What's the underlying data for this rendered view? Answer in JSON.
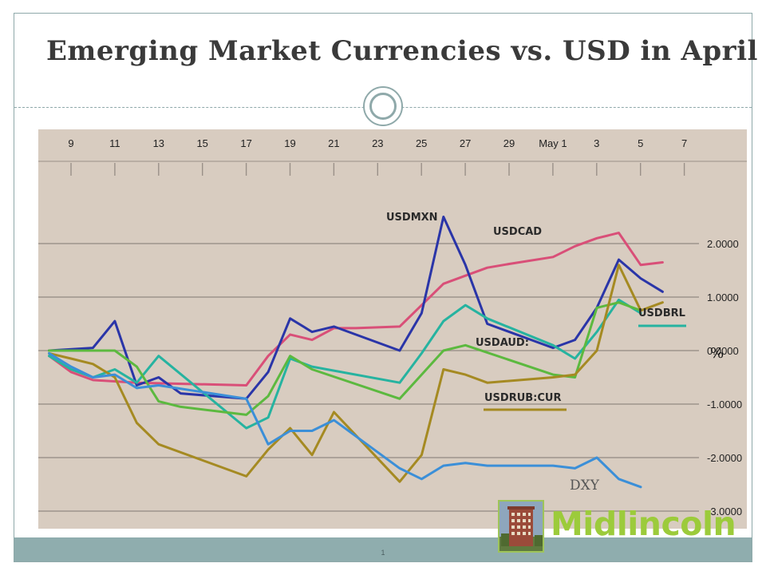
{
  "title": "Emerging Market Currencies vs. USD in April",
  "page_number": "1",
  "logo": {
    "text": "Midlincoln",
    "icon": "building-photo-icon",
    "color": "#9ccb3b"
  },
  "colors": {
    "accent": "#8fadae",
    "plot_bg": "#d8ccc0"
  },
  "chart_data": {
    "type": "line",
    "title": "Emerging Market Currencies vs. USD in April",
    "x_ticks": [
      "9",
      "11",
      "13",
      "15",
      "17",
      "19",
      "21",
      "23",
      "25",
      "27",
      "29",
      "May 1",
      "3",
      "5",
      "7"
    ],
    "y_ticks": [
      {
        "value": 2,
        "label": "2.0000"
      },
      {
        "value": 1,
        "label": "1.0000"
      },
      {
        "value": 0,
        "label": "0.0000"
      },
      {
        "value": -1,
        "label": "-1.0000"
      },
      {
        "value": -2,
        "label": "-2.0000"
      },
      {
        "value": -3,
        "label": "-3.0000"
      }
    ],
    "ylim": [
      -3.3,
      2.5
    ],
    "y_unit": "%",
    "grid": true,
    "series": [
      {
        "name": "USDCAD",
        "color": "#d94f78",
        "x": [
          8,
          9,
          10,
          12,
          17,
          18,
          19,
          20,
          21,
          22,
          24,
          25,
          26,
          27,
          28,
          29,
          31,
          32,
          33,
          34,
          35,
          36
        ],
        "y": [
          -0.1,
          -0.4,
          -0.55,
          -0.6,
          -0.65,
          -0.1,
          0.3,
          0.2,
          0.42,
          0.42,
          0.45,
          0.85,
          1.25,
          1.4,
          1.55,
          1.62,
          1.75,
          1.95,
          2.1,
          2.2,
          1.6,
          1.65
        ]
      },
      {
        "name": "USDMXN",
        "color": "#2a35a8",
        "x": [
          8,
          10,
          11,
          12,
          13,
          14,
          17,
          18,
          19,
          20,
          21,
          24,
          25,
          26,
          27,
          28,
          31,
          32,
          33,
          34,
          35,
          36
        ],
        "y": [
          0.0,
          0.05,
          0.55,
          -0.65,
          -0.5,
          -0.8,
          -0.9,
          -0.4,
          0.6,
          0.35,
          0.45,
          0.0,
          0.7,
          2.5,
          1.6,
          0.5,
          0.05,
          0.2,
          0.8,
          1.7,
          1.35,
          1.1
        ]
      },
      {
        "name": "USDBRL",
        "color": "#26b3a0",
        "x": [
          8,
          9,
          10,
          11,
          12,
          13,
          17,
          18,
          19,
          20,
          24,
          25,
          26,
          27,
          28,
          31,
          32,
          33,
          34,
          35
        ],
        "y": [
          -0.1,
          -0.35,
          -0.5,
          -0.35,
          -0.6,
          -0.1,
          -1.45,
          -1.25,
          -0.15,
          -0.3,
          -0.6,
          -0.05,
          0.55,
          0.85,
          0.6,
          0.1,
          -0.15,
          0.35,
          0.95,
          0.7
        ]
      },
      {
        "name": "USDAUD:",
        "color": "#5cb93f",
        "x": [
          8,
          9,
          10,
          11,
          12,
          13,
          14,
          17,
          18,
          19,
          20,
          24,
          25,
          26,
          27,
          31,
          32,
          33,
          34,
          35
        ],
        "y": [
          0.0,
          0.0,
          0.0,
          0.0,
          -0.3,
          -0.95,
          -1.05,
          -1.2,
          -0.85,
          -0.1,
          -0.35,
          -0.9,
          -0.45,
          0.0,
          0.1,
          -0.45,
          -0.5,
          0.8,
          0.9,
          0.75
        ]
      },
      {
        "name": "USDRUB:CUR",
        "color": "#a58a22",
        "x": [
          8,
          9,
          10,
          11,
          12,
          13,
          17,
          18,
          19,
          20,
          21,
          24,
          25,
          26,
          27,
          28,
          31,
          32,
          33,
          34,
          35,
          36
        ],
        "y": [
          -0.05,
          -0.15,
          -0.25,
          -0.5,
          -1.35,
          -1.75,
          -2.35,
          -1.85,
          -1.45,
          -1.95,
          -1.15,
          -2.45,
          -1.95,
          -0.35,
          -0.45,
          -0.6,
          -0.5,
          -0.45,
          0.0,
          1.6,
          0.75,
          0.9
        ]
      },
      {
        "name": "DXY",
        "color": "#3b8fd8",
        "x": [
          8,
          9,
          10,
          11,
          12,
          13,
          17,
          18,
          19,
          20,
          21,
          24,
          25,
          26,
          27,
          28,
          31,
          32,
          33,
          34,
          35
        ],
        "y": [
          -0.05,
          -0.3,
          -0.5,
          -0.45,
          -0.7,
          -0.65,
          -0.9,
          -1.75,
          -1.5,
          -1.5,
          -1.3,
          -2.2,
          -2.4,
          -2.15,
          -2.1,
          -2.15,
          -2.15,
          -2.2,
          -2.0,
          -2.4,
          -2.55
        ]
      }
    ],
    "annotations": [
      "USDMXN",
      "USDCAD",
      "USDBRL",
      "USDAUD:",
      "USDRUB:CUR",
      "DXY",
      "%"
    ]
  }
}
